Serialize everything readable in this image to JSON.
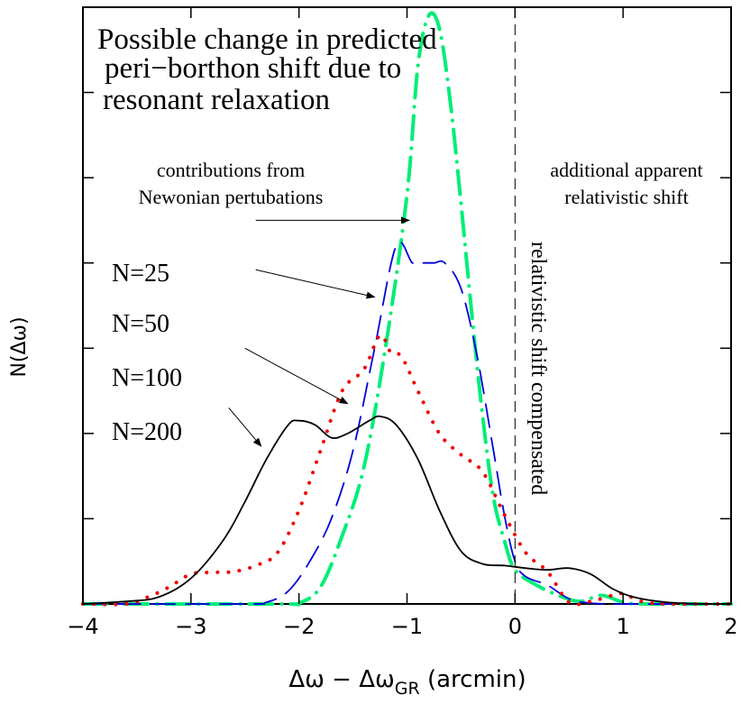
{
  "chart_data": {
    "type": "line",
    "title_lines": [
      "Possible change in predicted",
      " peri−borthon shift due to",
      "resonant relaxation"
    ],
    "xlabel": {
      "prefix": "Δω − Δω",
      "subscript": "GR",
      "suffix": " (arcmin)"
    },
    "ylabel": "N(Δω)",
    "xlim": [
      -4,
      2
    ],
    "ylim": [
      0,
      7
    ],
    "x_ticks": [
      -4,
      -3,
      -2,
      -1,
      0,
      1,
      2
    ],
    "x_tick_labels": [
      "−4",
      "−3",
      "−2",
      "−1",
      "0",
      "1",
      "2"
    ],
    "y_ticks": [
      1,
      2,
      3,
      4,
      5,
      6,
      7
    ],
    "grid": false,
    "vertical_reference_line": {
      "x": 0,
      "label": "relativistic shift compensated"
    },
    "annotations": {
      "left_region": [
        "contributions from",
        "Newonian pertubations"
      ],
      "right_region": [
        "additional apparent",
        "relativistic shift"
      ]
    },
    "series": [
      {
        "name": "N=25",
        "color": "#00ee77",
        "style": "dash-dot",
        "arrow_target": [
          -0.98,
          4.5
        ],
        "points": [
          [
            -4,
            0
          ],
          [
            -2.2,
            0
          ],
          [
            -2.0,
            0.01
          ],
          [
            -1.8,
            0.2
          ],
          [
            -1.6,
            0.8
          ],
          [
            -1.4,
            1.6
          ],
          [
            -1.2,
            3.0
          ],
          [
            -1.0,
            4.8
          ],
          [
            -0.9,
            6.3
          ],
          [
            -0.8,
            6.9
          ],
          [
            -0.7,
            6.75
          ],
          [
            -0.6,
            5.9
          ],
          [
            -0.5,
            4.7
          ],
          [
            -0.4,
            3.4
          ],
          [
            -0.3,
            2.2
          ],
          [
            -0.2,
            1.25
          ],
          [
            -0.1,
            0.75
          ],
          [
            0.0,
            0.4
          ],
          [
            0.2,
            0.22
          ],
          [
            0.4,
            0.1
          ],
          [
            0.6,
            0.03
          ],
          [
            0.8,
            0.1
          ],
          [
            1.0,
            0.02
          ],
          [
            1.2,
            0
          ],
          [
            2,
            0
          ]
        ]
      },
      {
        "name": "N=50",
        "color": "#0000dd",
        "style": "dashed",
        "arrow_target": [
          -1.3,
          3.6
        ],
        "points": [
          [
            -4,
            0
          ],
          [
            -2.5,
            0
          ],
          [
            -2.3,
            0.02
          ],
          [
            -2.1,
            0.15
          ],
          [
            -1.9,
            0.5
          ],
          [
            -1.7,
            1.0
          ],
          [
            -1.5,
            1.8
          ],
          [
            -1.3,
            3.0
          ],
          [
            -1.1,
            4.2
          ],
          [
            -0.95,
            4.0
          ],
          [
            -0.85,
            4.0
          ],
          [
            -0.75,
            4.0
          ],
          [
            -0.65,
            4.0
          ],
          [
            -0.5,
            3.7
          ],
          [
            -0.35,
            2.9
          ],
          [
            -0.2,
            1.8
          ],
          [
            -0.1,
            1.05
          ],
          [
            0.0,
            0.5
          ],
          [
            0.1,
            0.32
          ],
          [
            0.3,
            0.22
          ],
          [
            0.5,
            0.06
          ],
          [
            0.7,
            0.01
          ],
          [
            1.0,
            0
          ],
          [
            2,
            0
          ]
        ]
      },
      {
        "name": "N=100",
        "color": "#ee0000",
        "style": "dotted",
        "arrow_target": [
          -1.55,
          2.35
        ],
        "points": [
          [
            -4,
            0
          ],
          [
            -3.6,
            0
          ],
          [
            -3.4,
            0.08
          ],
          [
            -3.2,
            0.2
          ],
          [
            -3.0,
            0.35
          ],
          [
            -2.8,
            0.37
          ],
          [
            -2.6,
            0.38
          ],
          [
            -2.4,
            0.45
          ],
          [
            -2.2,
            0.6
          ],
          [
            -2.0,
            1.1
          ],
          [
            -1.8,
            1.8
          ],
          [
            -1.6,
            2.5
          ],
          [
            -1.4,
            2.75
          ],
          [
            -1.25,
            3.15
          ],
          [
            -1.15,
            2.95
          ],
          [
            -1.05,
            2.9
          ],
          [
            -0.9,
            2.5
          ],
          [
            -0.7,
            2.0
          ],
          [
            -0.5,
            1.75
          ],
          [
            -0.3,
            1.55
          ],
          [
            -0.1,
            1.05
          ],
          [
            0.1,
            0.6
          ],
          [
            0.3,
            0.38
          ],
          [
            0.5,
            0.02
          ],
          [
            0.7,
            0.03
          ],
          [
            0.9,
            0.1
          ],
          [
            1.0,
            0.12
          ],
          [
            1.2,
            0.02
          ],
          [
            1.5,
            0
          ],
          [
            2,
            0
          ]
        ]
      },
      {
        "name": "N=200",
        "color": "#000000",
        "style": "solid",
        "arrow_target": [
          -2.35,
          1.85
        ],
        "points": [
          [
            -4,
            0
          ],
          [
            -3.6,
            0.03
          ],
          [
            -3.3,
            0.08
          ],
          [
            -3.0,
            0.3
          ],
          [
            -2.7,
            0.75
          ],
          [
            -2.5,
            1.2
          ],
          [
            -2.3,
            1.7
          ],
          [
            -2.1,
            2.1
          ],
          [
            -2.0,
            2.15
          ],
          [
            -1.85,
            2.1
          ],
          [
            -1.7,
            1.95
          ],
          [
            -1.55,
            2.0
          ],
          [
            -1.35,
            2.15
          ],
          [
            -1.25,
            2.2
          ],
          [
            -1.1,
            2.1
          ],
          [
            -0.9,
            1.7
          ],
          [
            -0.7,
            1.1
          ],
          [
            -0.5,
            0.62
          ],
          [
            -0.3,
            0.47
          ],
          [
            -0.1,
            0.45
          ],
          [
            0.1,
            0.42
          ],
          [
            0.3,
            0.4
          ],
          [
            0.5,
            0.42
          ],
          [
            0.7,
            0.35
          ],
          [
            0.9,
            0.18
          ],
          [
            1.1,
            0.08
          ],
          [
            1.4,
            0.02
          ],
          [
            1.8,
            0
          ],
          [
            2,
            0
          ]
        ]
      }
    ],
    "legend_labels": [
      {
        "label": "N=25",
        "arrow_start": [
          -2.4,
          4.5
        ]
      },
      {
        "label": "N=50",
        "arrow_start": [
          -2.4,
          3.92
        ]
      },
      {
        "label": "N=100",
        "arrow_start": [
          -2.5,
          3.0
        ]
      },
      {
        "label": "N=200",
        "arrow_start": [
          -2.65,
          2.3
        ]
      }
    ]
  }
}
